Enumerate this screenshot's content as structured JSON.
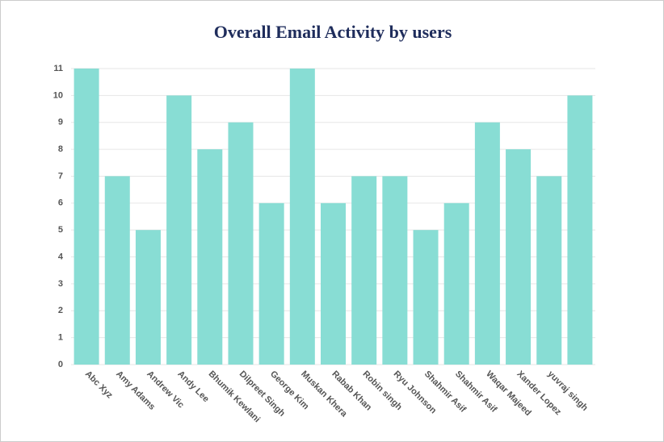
{
  "chart_data": {
    "type": "bar",
    "title": "Overall Email Activity by users",
    "categories": [
      "Abc Xyz",
      "Amy Adams",
      "Andrew Vic",
      "Andy Lee",
      "Bhumik Kewlani",
      "Dilpreet Singh",
      "George Kim",
      "Muskan Khera",
      "Rabab Khan",
      "Robin singh",
      "Ryu Johnson",
      "Shahmir Asif",
      "Shahmir Asif",
      "Waqar Majeed",
      "Xander Lopez",
      "yuvraj singh",
      null
    ],
    "values": [
      11,
      7,
      5,
      10,
      8,
      9,
      6,
      11,
      6,
      7,
      7,
      5,
      6,
      9,
      8,
      7,
      10
    ],
    "color": "#88ddd4",
    "ylim": [
      0,
      11
    ],
    "yticks": [
      0,
      1,
      2,
      3,
      4,
      5,
      6,
      7,
      8,
      9,
      10,
      11
    ],
    "grid": true
  }
}
